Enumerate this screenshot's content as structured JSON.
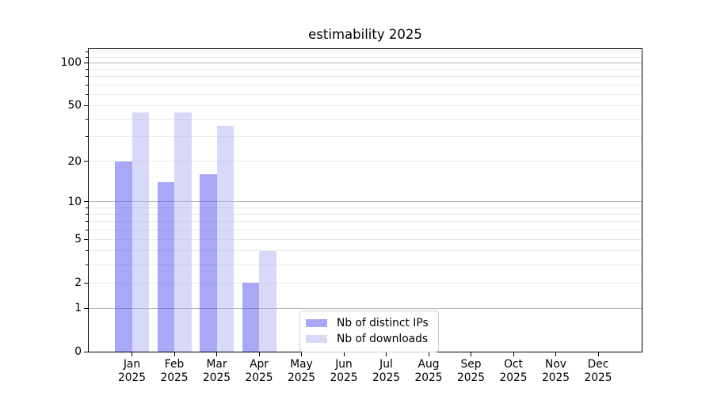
{
  "chart_data": {
    "type": "bar",
    "title": "estimability 2025",
    "xlabel": "",
    "ylabel": "",
    "year": "2025",
    "categories": [
      "Jan",
      "Feb",
      "Mar",
      "Apr",
      "May",
      "Jun",
      "Jul",
      "Aug",
      "Sep",
      "Oct",
      "Nov",
      "Dec"
    ],
    "series": [
      {
        "name": "Nb of distinct IPs",
        "color": "#a8a8f6",
        "color_rgba": "rgba(81,81,237,0.5)",
        "values": [
          20,
          14,
          16,
          2,
          null,
          null,
          null,
          null,
          null,
          null,
          null,
          null
        ]
      },
      {
        "name": "Nb of downloads",
        "color": "#d8d8f9",
        "color_rgba": "rgba(177,177,243,0.5)",
        "values": [
          45,
          45,
          36,
          4,
          null,
          null,
          null,
          null,
          null,
          null,
          null,
          null
        ]
      }
    ],
    "yscale": "log1p",
    "ylim": [
      0,
      125
    ],
    "yticks_labeled": [
      0,
      1,
      2,
      5,
      10,
      20,
      50,
      100
    ],
    "major_gridlines": [
      1,
      10,
      100
    ],
    "minor_gridlines": [
      2,
      3,
      4,
      5,
      6,
      7,
      8,
      9,
      20,
      30,
      40,
      50,
      60,
      70,
      80,
      90,
      110,
      120
    ],
    "grid_color_major": "#b3b3b3",
    "grid_color_minor": "#e8e8e8",
    "legend_position": "lower center",
    "grid": "on"
  }
}
